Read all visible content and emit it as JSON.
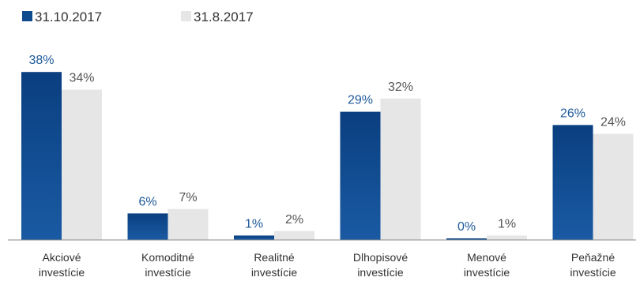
{
  "chart_data": {
    "type": "bar",
    "categories": [
      [
        "Akciové",
        "investície"
      ],
      [
        "Komoditné",
        "investície"
      ],
      [
        "Realitné",
        "investície"
      ],
      [
        "Dlhopisové",
        "investície"
      ],
      [
        "Menové",
        "investície"
      ],
      [
        "Peňažné",
        "investície"
      ]
    ],
    "series": [
      {
        "name": "31.10.2017",
        "values": [
          38,
          6,
          1,
          29,
          0,
          26
        ],
        "labels": [
          "38%",
          "6%",
          "1%",
          "29%",
          "0%",
          "26%"
        ],
        "color": "#0d4a8e",
        "label_color": "#1f5a9a"
      },
      {
        "name": "31.8.2017",
        "values": [
          34,
          7,
          2,
          32,
          1,
          24
        ],
        "labels": [
          "34%",
          "7%",
          "2%",
          "32%",
          "1%",
          "24%"
        ],
        "color": "#e6e6e6",
        "label_color": "#555555"
      }
    ],
    "ylim": [
      0,
      40
    ],
    "grid": false,
    "legend_position": "top-left"
  }
}
